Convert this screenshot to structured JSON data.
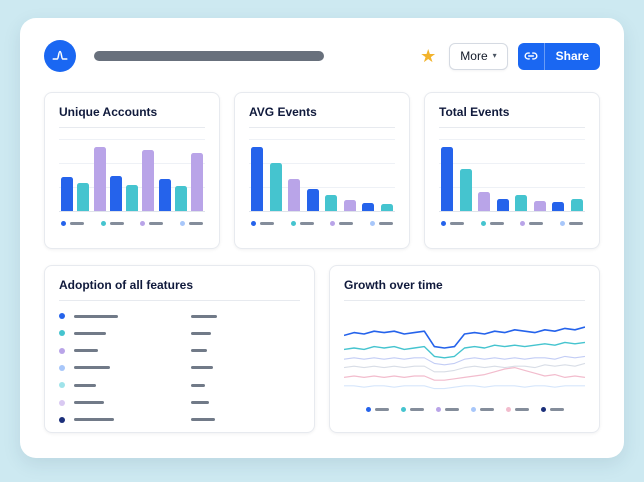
{
  "topbar": {
    "more_label": "More",
    "share_label": "Share",
    "icons": {
      "logo": "amplitude-logo",
      "favorite": "star-icon",
      "share": "link-icon",
      "more_chevron": "chevron-down-icon"
    }
  },
  "theme": {
    "page_background": "#cde9f1",
    "window_background": "#ffffff",
    "primary_blue": "#1a67f2",
    "star_gold": "#f2b32c",
    "bar_blue": "#2563eb",
    "bar_teal": "#45c4cf",
    "bar_purple": "#b9a4e8",
    "dash_gray": "#717a88"
  },
  "chart_data": [
    {
      "id": "unique_accounts",
      "type": "bar",
      "title": "Unique Accounts",
      "values": [
        46,
        38,
        88,
        48,
        36,
        84,
        44,
        34,
        80
      ],
      "colors": [
        "#2563eb",
        "#45c4cf",
        "#b9a4e8"
      ],
      "legend_colors": [
        "#2563eb",
        "#45c4cf",
        "#b9a4e8",
        "#a8c7fa"
      ],
      "ylim": [
        0,
        100
      ],
      "grid": true
    },
    {
      "id": "avg_events",
      "type": "bar",
      "title": "AVG Events",
      "values": [
        88,
        66,
        44,
        30,
        22,
        15,
        11,
        9
      ],
      "colors": [
        "#2563eb",
        "#45c4cf",
        "#b9a4e8"
      ],
      "legend_colors": [
        "#2563eb",
        "#45c4cf",
        "#b9a4e8",
        "#a8c7fa"
      ],
      "ylim": [
        0,
        100
      ],
      "grid": true
    },
    {
      "id": "total_events",
      "type": "bar",
      "title": "Total Events",
      "values": [
        88,
        58,
        26,
        17,
        22,
        14,
        12,
        16
      ],
      "colors": [
        "#2563eb",
        "#45c4cf",
        "#b9a4e8"
      ],
      "legend_colors": [
        "#2563eb",
        "#45c4cf",
        "#b9a4e8",
        "#a8c7fa"
      ],
      "ylim": [
        0,
        100
      ],
      "grid": true
    },
    {
      "id": "adoption_of_all_features",
      "type": "table",
      "title": "Adoption of all features",
      "rows": [
        {
          "dot_color": "#2563eb",
          "label_width": 44,
          "value_width": 26
        },
        {
          "dot_color": "#45c4cf",
          "label_width": 32,
          "value_width": 20
        },
        {
          "dot_color": "#b9a4e8",
          "label_width": 24,
          "value_width": 16
        },
        {
          "dot_color": "#a8c7fa",
          "label_width": 36,
          "value_width": 22
        },
        {
          "dot_color": "#9fe3ea",
          "label_width": 22,
          "value_width": 14
        },
        {
          "dot_color": "#d9c9f2",
          "label_width": 30,
          "value_width": 18
        },
        {
          "dot_color": "#1b2f7a",
          "label_width": 40,
          "value_width": 24
        }
      ]
    },
    {
      "id": "growth_over_time",
      "type": "line",
      "title": "Growth over time",
      "xlim": [
        0,
        100
      ],
      "legend_colors": [
        "#2563eb",
        "#45c4cf",
        "#b9a4e8",
        "#a8c7fa",
        "#f2bccd",
        "#1b2f7a"
      ],
      "series": [
        {
          "name": "series-1",
          "color": "#2563eb",
          "width": 1.6,
          "points": [
            16,
            14,
            15,
            13,
            14,
            13,
            15,
            14,
            13,
            24,
            25,
            24,
            15,
            14,
            15,
            13,
            14,
            12,
            13,
            14,
            12,
            13,
            11,
            12,
            10
          ]
        },
        {
          "name": "series-2",
          "color": "#45c4cf",
          "width": 1.4,
          "points": [
            26,
            25,
            26,
            24,
            25,
            24,
            26,
            25,
            24,
            31,
            32,
            31,
            25,
            24,
            25,
            23,
            24,
            23,
            24,
            23,
            22,
            23,
            21,
            22,
            21
          ]
        },
        {
          "name": "series-3",
          "color": "#c3cdf5",
          "width": 1.1,
          "points": [
            33,
            32,
            33,
            32,
            33,
            32,
            33,
            32,
            32,
            36,
            37,
            36,
            33,
            32,
            33,
            32,
            33,
            32,
            33,
            32,
            32,
            33,
            31,
            32,
            31
          ]
        },
        {
          "name": "series-4",
          "color": "#d8dde6",
          "width": 1.1,
          "points": [
            39,
            38,
            39,
            38,
            39,
            38,
            39,
            38,
            38,
            42,
            42,
            41,
            39,
            38,
            39,
            38,
            39,
            38,
            38,
            39,
            37,
            38,
            37,
            38,
            36
          ]
        },
        {
          "name": "series-5",
          "color": "#f2bccd",
          "width": 1.2,
          "points": [
            46,
            45,
            46,
            45,
            46,
            45,
            46,
            45,
            45,
            48,
            48,
            47,
            46,
            45,
            44,
            42,
            40,
            39,
            41,
            43,
            45,
            44,
            46,
            45,
            46
          ]
        },
        {
          "name": "series-6",
          "color": "#d6e6fb",
          "width": 1.1,
          "points": [
            52,
            52,
            53,
            52,
            52,
            53,
            52,
            52,
            52,
            54,
            54,
            53,
            52,
            52,
            53,
            52,
            52,
            52,
            53,
            52,
            52,
            53,
            52,
            52,
            52
          ]
        }
      ]
    }
  ]
}
